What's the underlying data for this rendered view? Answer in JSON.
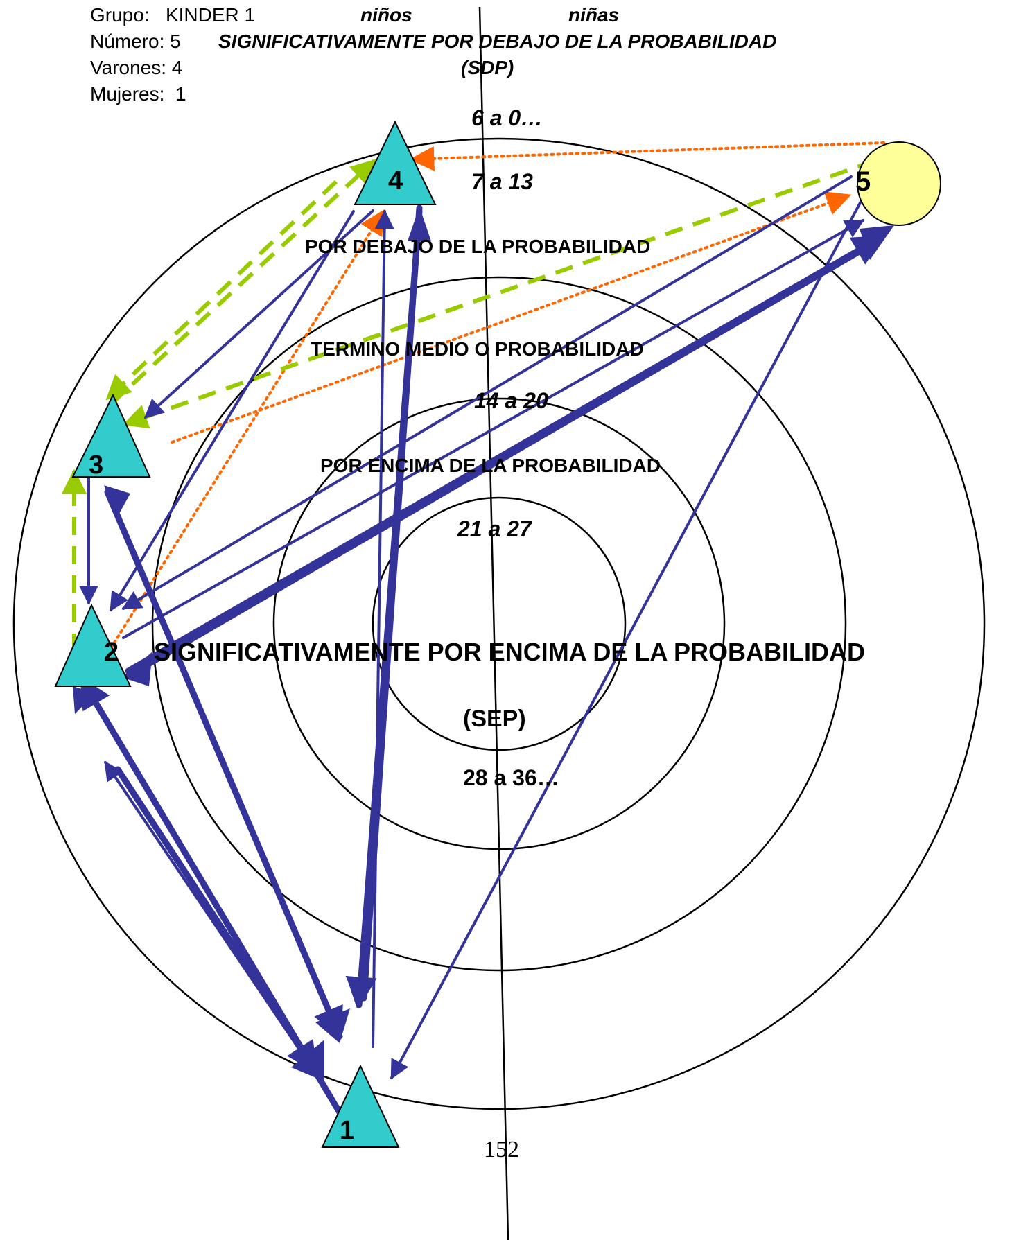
{
  "info": {
    "grupo_label": "Grupo:",
    "grupo_value": "KINDER 1",
    "numero_label": "Número:",
    "numero_value": "5",
    "varones_label": "Varones:",
    "varones_value": "4",
    "mujeres_label": "Mujeres:",
    "mujeres_value": "1"
  },
  "header": {
    "ninos": "niños",
    "ninas": "niñas",
    "sdp_title": "SIGNIFICATIVAMENTE POR DEBAJO DE LA PROBABILIDAD",
    "sdp_abbr": "(SDP)"
  },
  "zones": {
    "range_6_0": "6 a 0…",
    "range_7_13": "7 a 13",
    "below": "POR DEBAJO DE LA PROBABILIDAD",
    "average": "TERMINO MEDIO O  PROBABILIDAD",
    "range_14_20": "14 a 20",
    "above": "POR ENCIMA DE LA PROBABILIDAD",
    "range_21_27": "21 a 27",
    "sep_title": "SIGNIFICATIVAMENTE POR ENCIMA DE LA PROBABILIDAD",
    "sep_abbr": "(SEP)",
    "range_28_36": "28 a 36…"
  },
  "nodes": [
    {
      "id": "1",
      "label": "1",
      "shape": "triangle",
      "group": "niños"
    },
    {
      "id": "2",
      "label": "2",
      "shape": "triangle",
      "group": "niños"
    },
    {
      "id": "3",
      "label": "3",
      "shape": "triangle",
      "group": "niños"
    },
    {
      "id": "4",
      "label": "4",
      "shape": "triangle",
      "group": "niños"
    },
    {
      "id": "5",
      "label": "5",
      "shape": "circle",
      "group": "niñas"
    }
  ],
  "colors": {
    "boy_fill": "#33CCCC",
    "girl_fill": "#FFFF99",
    "choice_arrow": "#333399",
    "dashed_arrow": "#99CC00",
    "dotted_arrow": "#FF6600"
  },
  "page_number": "152"
}
